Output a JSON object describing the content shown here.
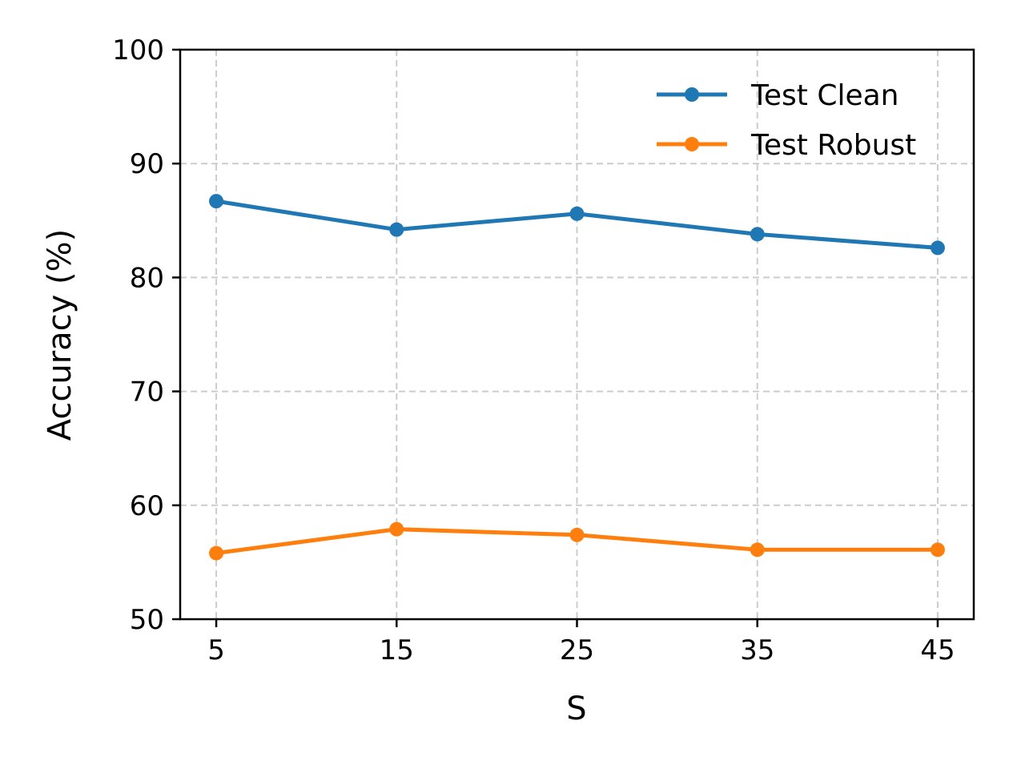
{
  "chart_data": {
    "type": "line",
    "xlabel": "S",
    "ylabel": "Accuracy (%)",
    "x": [
      5,
      15,
      25,
      35,
      45
    ],
    "xticks": [
      5,
      15,
      25,
      35,
      45
    ],
    "xlim": [
      3,
      47
    ],
    "yticks": [
      50,
      60,
      70,
      80,
      90,
      100
    ],
    "ylim": [
      50,
      100
    ],
    "grid": true,
    "legend_position": "top-right",
    "series": [
      {
        "name": "Test Clean",
        "color": "#1f77b4",
        "values": [
          86.7,
          84.2,
          85.6,
          83.8,
          82.6
        ]
      },
      {
        "name": "Test Robust",
        "color": "#ff7f0e",
        "values": [
          55.8,
          57.9,
          57.4,
          56.1,
          56.1
        ]
      }
    ]
  }
}
